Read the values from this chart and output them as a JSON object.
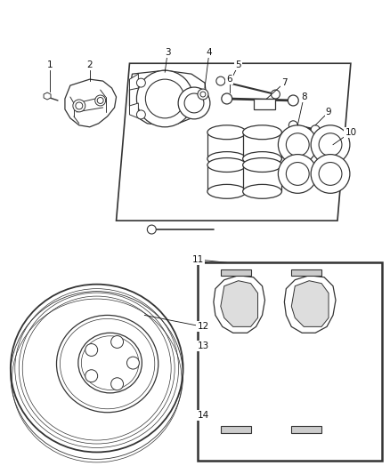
{
  "bg_color": "#ffffff",
  "line_color": "#333333",
  "text_color": "#111111",
  "label_fontsize": 7.5,
  "fig_width": 4.38,
  "fig_height": 5.33
}
